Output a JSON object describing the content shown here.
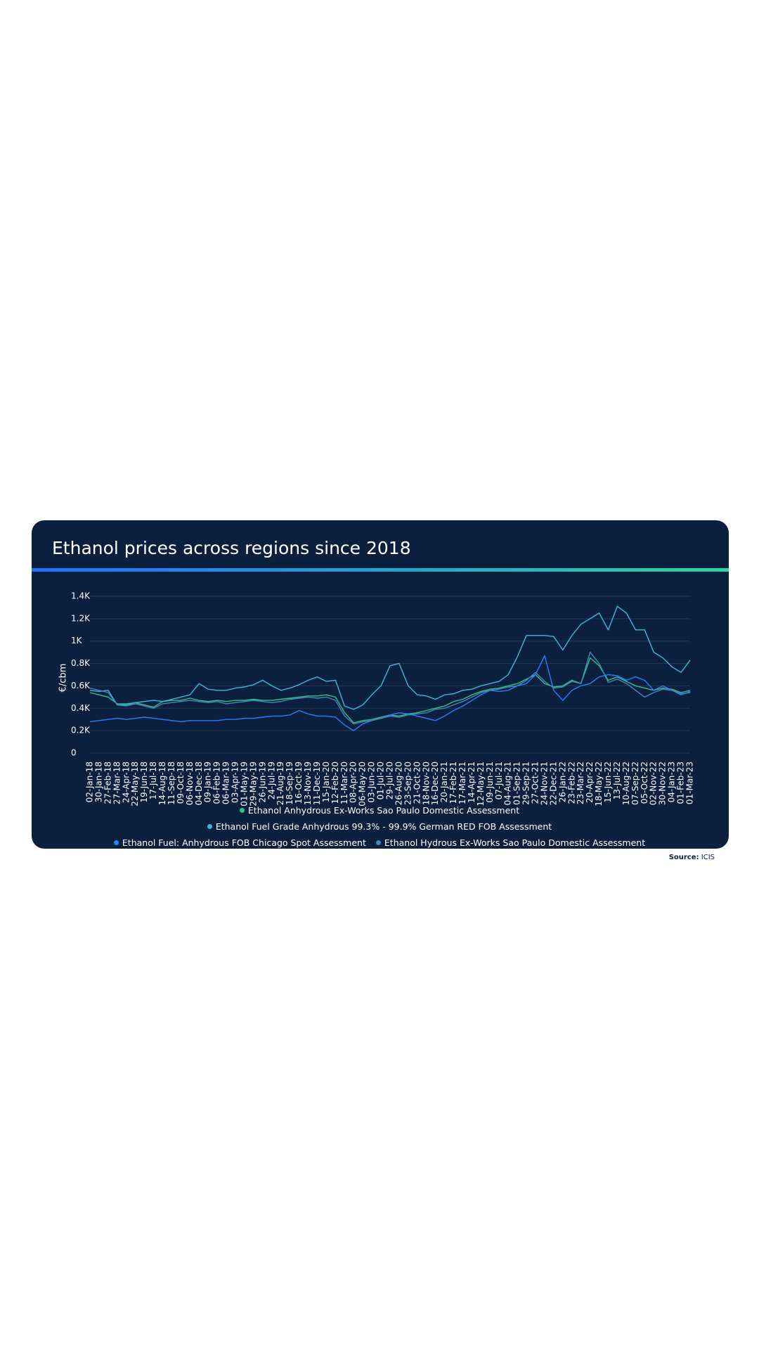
{
  "chart_data": {
    "type": "line",
    "title": "Ethanol prices across regions since 2018",
    "y_label": "€/cbm",
    "categories": [
      "02-Jan-18",
      "30-Jan-18",
      "27-Feb-18",
      "27-Mar-18",
      "24-Apr-18",
      "22-May-18",
      "19-Jun-18",
      "17-Jul-18",
      "14-Aug-18",
      "11-Sep-18",
      "09-Oct-18",
      "06-Nov-18",
      "04-Dec-18",
      "09-Jan-19",
      "06-Feb-19",
      "06-Mar-19",
      "03-Apr-19",
      "01-May-19",
      "29-May-19",
      "26-Jun-19",
      "24-Jul-19",
      "21-Aug-19",
      "18-Sep-19",
      "16-Oct-19",
      "13-Nov-19",
      "11-Dec-19",
      "15-Jan-20",
      "12-Feb-20",
      "11-Mar-20",
      "08-Apr-20",
      "06-May-20",
      "03-Jun-20",
      "01-Jul-20",
      "29-Jul-20",
      "26-Aug-20",
      "23-Sep-20",
      "21-Oct-20",
      "18-Nov-20",
      "16-Dec-20",
      "20-Jan-21",
      "17-Feb-21",
      "17-Mar-21",
      "14-Apr-21",
      "12-May-21",
      "09-Jun-21",
      "07-Jul-21",
      "04-Aug-21",
      "01-Sep-21",
      "29-Sep-21",
      "27-Oct-21",
      "24-Nov-21",
      "22-Dec-21",
      "26-Jan-22",
      "23-Feb-22",
      "23-Mar-22",
      "20-Apr-22",
      "18-May-22",
      "15-Jun-22",
      "13-Jul-22",
      "10-Aug-22",
      "07-Sep-22",
      "05-Oct-22",
      "02-Nov-22",
      "30-Nov-22",
      "04-Jan-23",
      "01-Feb-23",
      "01-Mar-23"
    ],
    "series": [
      {
        "name": "Ethanol Anhydrous Ex-Works Sao Paulo Domestic Assessment",
        "color": "#2ec28a",
        "values": [
          540,
          520,
          500,
          440,
          440,
          450,
          430,
          410,
          460,
          470,
          470,
          490,
          470,
          460,
          470,
          460,
          470,
          470,
          480,
          470,
          470,
          480,
          490,
          500,
          510,
          510,
          520,
          500,
          360,
          270,
          290,
          300,
          320,
          340,
          330,
          350,
          360,
          380,
          400,
          420,
          460,
          480,
          520,
          550,
          570,
          580,
          600,
          620,
          660,
          700,
          620,
          590,
          600,
          650,
          620,
          850,
          780,
          650,
          680,
          640,
          600,
          580,
          560,
          580,
          570,
          540,
          560
        ]
      },
      {
        "name": "Ethanol Fuel Grade Anhydrous 99.3% - 99.9% German RED FOB Assessment",
        "color": "#3fb8d8",
        "values": [
          560,
          550,
          560,
          430,
          430,
          450,
          460,
          470,
          460,
          480,
          500,
          520,
          620,
          570,
          560,
          560,
          580,
          590,
          610,
          650,
          600,
          560,
          580,
          610,
          650,
          680,
          640,
          650,
          420,
          390,
          430,
          520,
          600,
          780,
          800,
          600,
          520,
          510,
          480,
          520,
          530,
          560,
          570,
          600,
          620,
          640,
          700,
          860,
          1050,
          1050,
          1050,
          1040,
          920,
          1050,
          1150,
          1200,
          1250,
          1100,
          1310,
          1250,
          1100,
          1100,
          900,
          850,
          770,
          720,
          830
        ]
      },
      {
        "name": "Ethanol Fuel: Anhydrous FOB Chicago Spot Assessment",
        "color": "#2a7fff",
        "values": [
          280,
          290,
          300,
          310,
          300,
          310,
          320,
          310,
          300,
          290,
          280,
          290,
          290,
          290,
          290,
          300,
          300,
          310,
          310,
          320,
          330,
          330,
          340,
          380,
          350,
          330,
          330,
          320,
          250,
          200,
          260,
          290,
          310,
          340,
          360,
          350,
          330,
          310,
          290,
          330,
          380,
          420,
          470,
          520,
          560,
          550,
          560,
          600,
          620,
          700,
          870,
          560,
          470,
          560,
          600,
          620,
          680,
          700,
          690,
          650,
          680,
          650,
          560,
          600,
          560,
          520,
          550
        ]
      },
      {
        "name": "Ethanol Hydrous Ex-Works Sao Paulo Domestic Assessment",
        "color": "#4a86b8",
        "values": [
          580,
          560,
          540,
          430,
          420,
          440,
          420,
          400,
          440,
          450,
          460,
          470,
          460,
          450,
          460,
          440,
          450,
          460,
          470,
          460,
          450,
          460,
          480,
          490,
          500,
          490,
          500,
          470,
          330,
          260,
          280,
          290,
          310,
          330,
          320,
          340,
          350,
          360,
          390,
          400,
          430,
          460,
          500,
          540,
          560,
          570,
          590,
          600,
          650,
          720,
          640,
          580,
          590,
          640,
          620,
          900,
          800,
          630,
          660,
          620,
          560,
          500,
          540,
          570,
          560,
          530,
          540
        ]
      }
    ],
    "ylim": [
      0,
      1400
    ],
    "yticks": [
      0,
      {
        "value": 200,
        "label": "0.2K"
      },
      {
        "value": 400,
        "label": "0.4K"
      },
      {
        "value": 600,
        "label": "0.6K"
      },
      {
        "value": 800,
        "label": "0.8K"
      },
      {
        "value": 1000,
        "label": "1K"
      },
      {
        "value": 1200,
        "label": "1.2K"
      },
      {
        "value": 1400,
        "label": "1.4K"
      }
    ],
    "grid": true,
    "source_label": "Source:",
    "source": "ICIS"
  }
}
